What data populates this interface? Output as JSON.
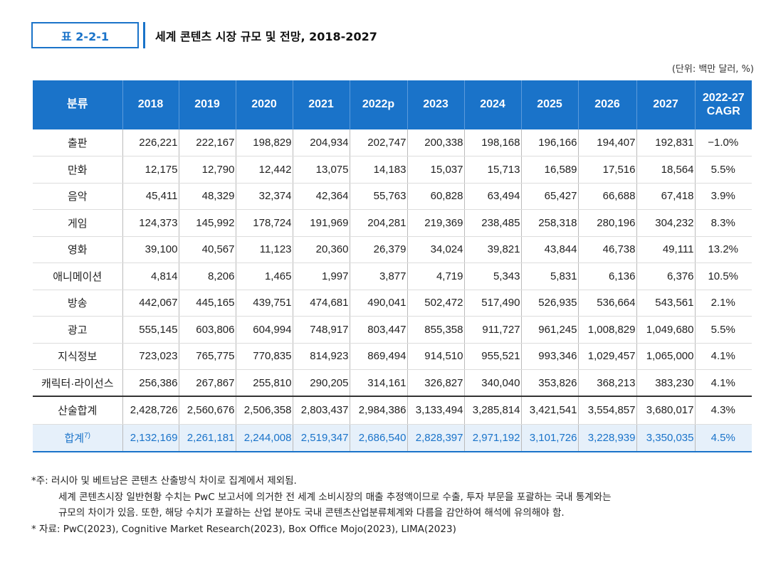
{
  "table_tag": "표 2-2-1",
  "title": "세계 콘텐츠 시장 규모 및 전망, 2018-2027",
  "unit": "(단위: 백만 달러, %)",
  "header": {
    "category": "분류",
    "years": [
      "2018",
      "2019",
      "2020",
      "2021",
      "2022p",
      "2023",
      "2024",
      "2025",
      "2026",
      "2027"
    ],
    "cagr_line1": "2022-27",
    "cagr_line2": "CAGR"
  },
  "rows": [
    {
      "name": "출판",
      "values": [
        "226,221",
        "222,167",
        "198,829",
        "204,934",
        "202,747",
        "200,338",
        "198,168",
        "196,166",
        "194,407",
        "192,831"
      ],
      "cagr": "−1.0%"
    },
    {
      "name": "만화",
      "values": [
        "12,175",
        "12,790",
        "12,442",
        "13,075",
        "14,183",
        "15,037",
        "15,713",
        "16,589",
        "17,516",
        "18,564"
      ],
      "cagr": "5.5%"
    },
    {
      "name": "음악",
      "values": [
        "45,411",
        "48,329",
        "32,374",
        "42,364",
        "55,763",
        "60,828",
        "63,494",
        "65,427",
        "66,688",
        "67,418"
      ],
      "cagr": "3.9%"
    },
    {
      "name": "게임",
      "values": [
        "124,373",
        "145,992",
        "178,724",
        "191,969",
        "204,281",
        "219,369",
        "238,485",
        "258,318",
        "280,196",
        "304,232"
      ],
      "cagr": "8.3%"
    },
    {
      "name": "영화",
      "values": [
        "39,100",
        "40,567",
        "11,123",
        "20,360",
        "26,379",
        "34,024",
        "39,821",
        "43,844",
        "46,738",
        "49,111"
      ],
      "cagr": "13.2%"
    },
    {
      "name": "애니메이션",
      "values": [
        "4,814",
        "8,206",
        "1,465",
        "1,997",
        "3,877",
        "4,719",
        "5,343",
        "5,831",
        "6,136",
        "6,376"
      ],
      "cagr": "10.5%"
    },
    {
      "name": "방송",
      "values": [
        "442,067",
        "445,165",
        "439,751",
        "474,681",
        "490,041",
        "502,472",
        "517,490",
        "526,935",
        "536,664",
        "543,561"
      ],
      "cagr": "2.1%"
    },
    {
      "name": "광고",
      "values": [
        "555,145",
        "603,806",
        "604,994",
        "748,917",
        "803,447",
        "855,358",
        "911,727",
        "961,245",
        "1,008,829",
        "1,049,680"
      ],
      "cagr": "5.5%"
    },
    {
      "name": "지식정보",
      "values": [
        "723,023",
        "765,775",
        "770,835",
        "814,923",
        "869,494",
        "914,510",
        "955,521",
        "993,346",
        "1,029,457",
        "1,065,000"
      ],
      "cagr": "4.1%"
    },
    {
      "name": "캐릭터·라이선스",
      "values": [
        "256,386",
        "267,867",
        "255,810",
        "290,205",
        "314,161",
        "326,827",
        "340,040",
        "353,826",
        "368,213",
        "383,230"
      ],
      "cagr": "4.1%"
    }
  ],
  "subtotal": {
    "name": "산술합계",
    "values": [
      "2,428,726",
      "2,560,676",
      "2,506,358",
      "2,803,437",
      "2,984,386",
      "3,133,494",
      "3,285,814",
      "3,421,541",
      "3,554,857",
      "3,680,017"
    ],
    "cagr": "4.3%"
  },
  "total": {
    "name": "합계",
    "footnote_mark": "7)",
    "values": [
      "2,132,169",
      "2,261,181",
      "2,244,008",
      "2,519,347",
      "2,686,540",
      "2,828,397",
      "2,971,192",
      "3,101,726",
      "3,228,939",
      "3,350,035"
    ],
    "cagr": "4.5%"
  },
  "notes": [
    "*주: 러시아 및 베트남은 콘텐츠 산출방식 차이로 집계에서 제외됨.",
    "세계 콘텐츠시장 일반현황 수치는 PwC 보고서에 의거한 전 세계 소비시장의 매출 추정액이므로 수출, 투자 부문을 포괄하는 국내 통계와는",
    "규모의 차이가 있음. 또한, 해당 수치가 포괄하는 산업 분야도 국내 콘텐츠산업분류체계와 다름을 감안하여 해석에 유의해야 함.",
    "* 자료: PwC(2023), Cognitive Market Research(2023), Box Office Mojo(2023), LIMA(2023)"
  ]
}
